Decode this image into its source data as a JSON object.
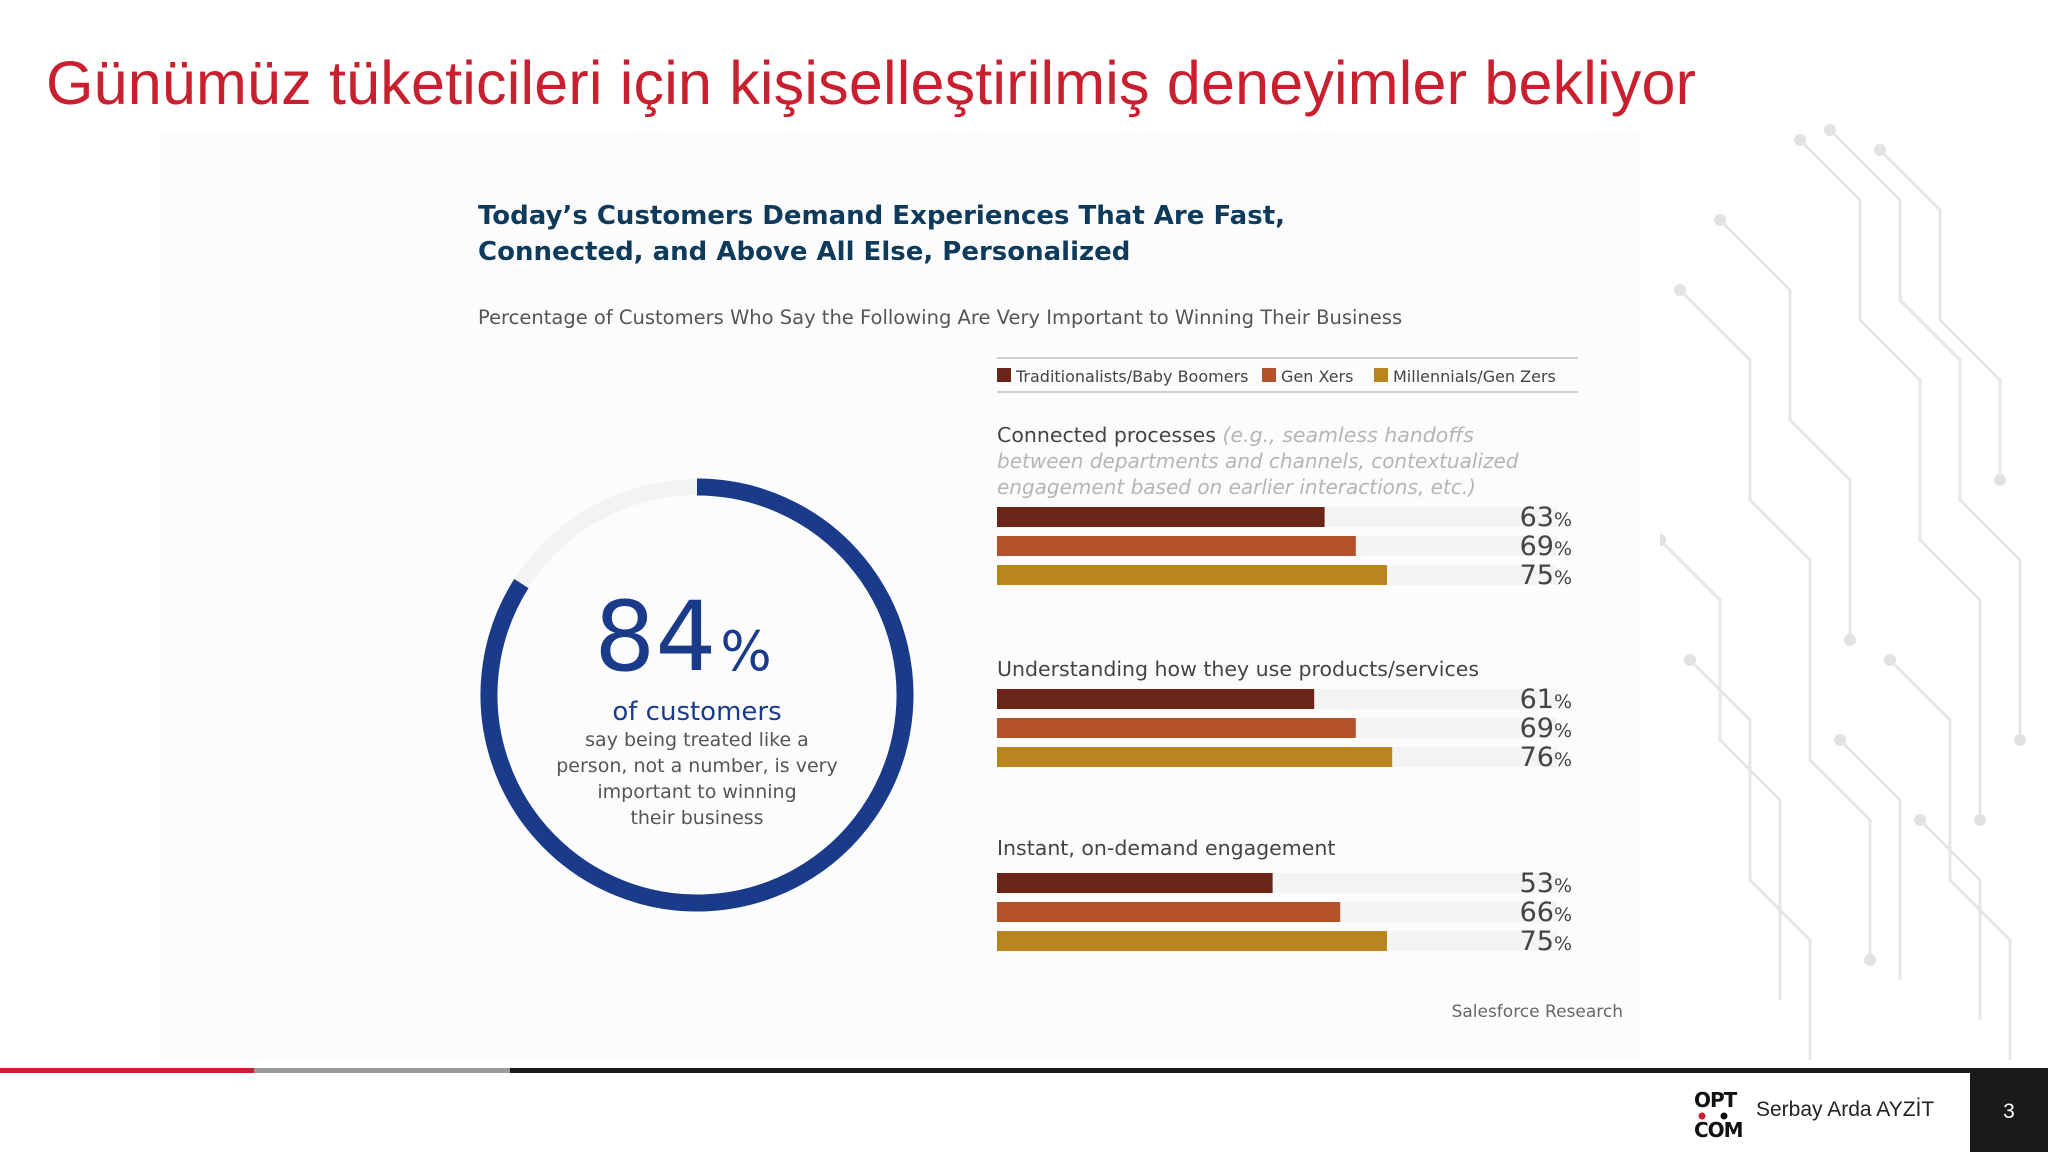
{
  "slide": {
    "title": "Günümüz tüketicileri için kişiselleştirilmiş deneyimler bekliyor",
    "presenter": "Serbay Arda AYZİT",
    "page_number": "3",
    "logo_text": [
      "OPT",
      "COM"
    ]
  },
  "colors": {
    "title": "#c8202f",
    "ring": "#1a3a8a",
    "heading": "#0e3a5c",
    "series": [
      "#6b2418",
      "#b5522a",
      "#b8861c"
    ],
    "footer": [
      "#c8202f",
      "#9a9a9a",
      "#1a1a1a"
    ]
  },
  "chart_data": [
    {
      "type": "pie",
      "value": 84,
      "big_number": "84",
      "percent_sign": "%",
      "caption": "of customers",
      "caption_lines": [
        "say being treated like a",
        "person, not a number, is very",
        "important to winning",
        "their business"
      ]
    },
    {
      "type": "bar",
      "orientation": "horizontal",
      "title_lines": [
        "Today’s Customers Demand Experiences That Are Fast,",
        "Connected, and Above All Else, Personalized"
      ],
      "subtitle": "Percentage of Customers Who Say the Following Are Very Important to Winning Their Business",
      "legend_position": "top",
      "series_names": [
        "Traditionalists/Baby Boomers",
        "Gen Xers",
        "Millennials/Gen Zers"
      ],
      "unit": "%",
      "xlim": [
        0,
        100
      ],
      "groups": [
        {
          "label": "Connected processes",
          "note_lines": [
            " (e.g., seamless handoffs",
            "between departments and channels, contextualized",
            "engagement based on earlier interactions, etc.)"
          ],
          "values": [
            63,
            69,
            75
          ]
        },
        {
          "label": "Understanding how they use products/services",
          "note_lines": [],
          "values": [
            61,
            69,
            76
          ]
        },
        {
          "label": "Instant, on-demand engagement",
          "note_lines": [],
          "values": [
            53,
            66,
            75
          ]
        }
      ],
      "source": "Salesforce Research"
    }
  ]
}
